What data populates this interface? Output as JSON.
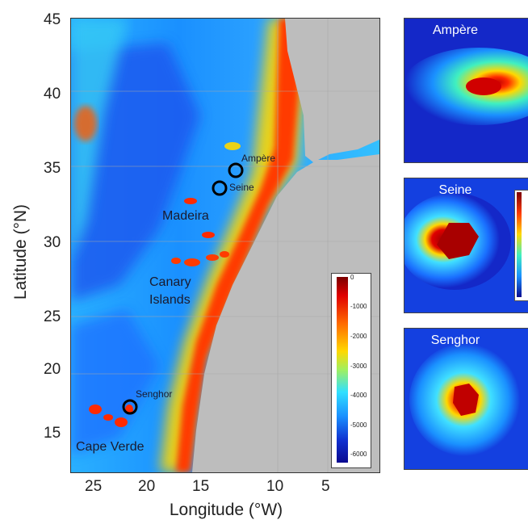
{
  "axes": {
    "ylabel": "Latitude (°N)",
    "xlabel": "Longitude (°W)",
    "yticks": [
      "45",
      "40",
      "35",
      "30",
      "25",
      "20",
      "15"
    ],
    "xticks": [
      "25",
      "20",
      "15",
      "10",
      "5"
    ]
  },
  "map_labels": {
    "ampere": "Ampère",
    "seine": "Seine",
    "madeira": "Madeira",
    "canary_1": "Canary",
    "canary_2": "Islands",
    "senghor": "Senghor",
    "cape_verde": "Cape Verde"
  },
  "colorbar": {
    "ticks": [
      "0",
      "-1000",
      "-2000",
      "-3000",
      "-4000",
      "-5000",
      "-6000"
    ]
  },
  "insets": {
    "ampere_title": "Ampère",
    "seine_title": "Seine",
    "senghor_title": "Senghor"
  },
  "colors": {
    "deep_ocean": "#1428c8",
    "ocean": "#1a66ff",
    "mid_ocean": "#2ab0ff",
    "shallow": "#ffd800",
    "shelf": "#ff3b00",
    "coast": "#c80000",
    "land": "#bdbdbd"
  }
}
